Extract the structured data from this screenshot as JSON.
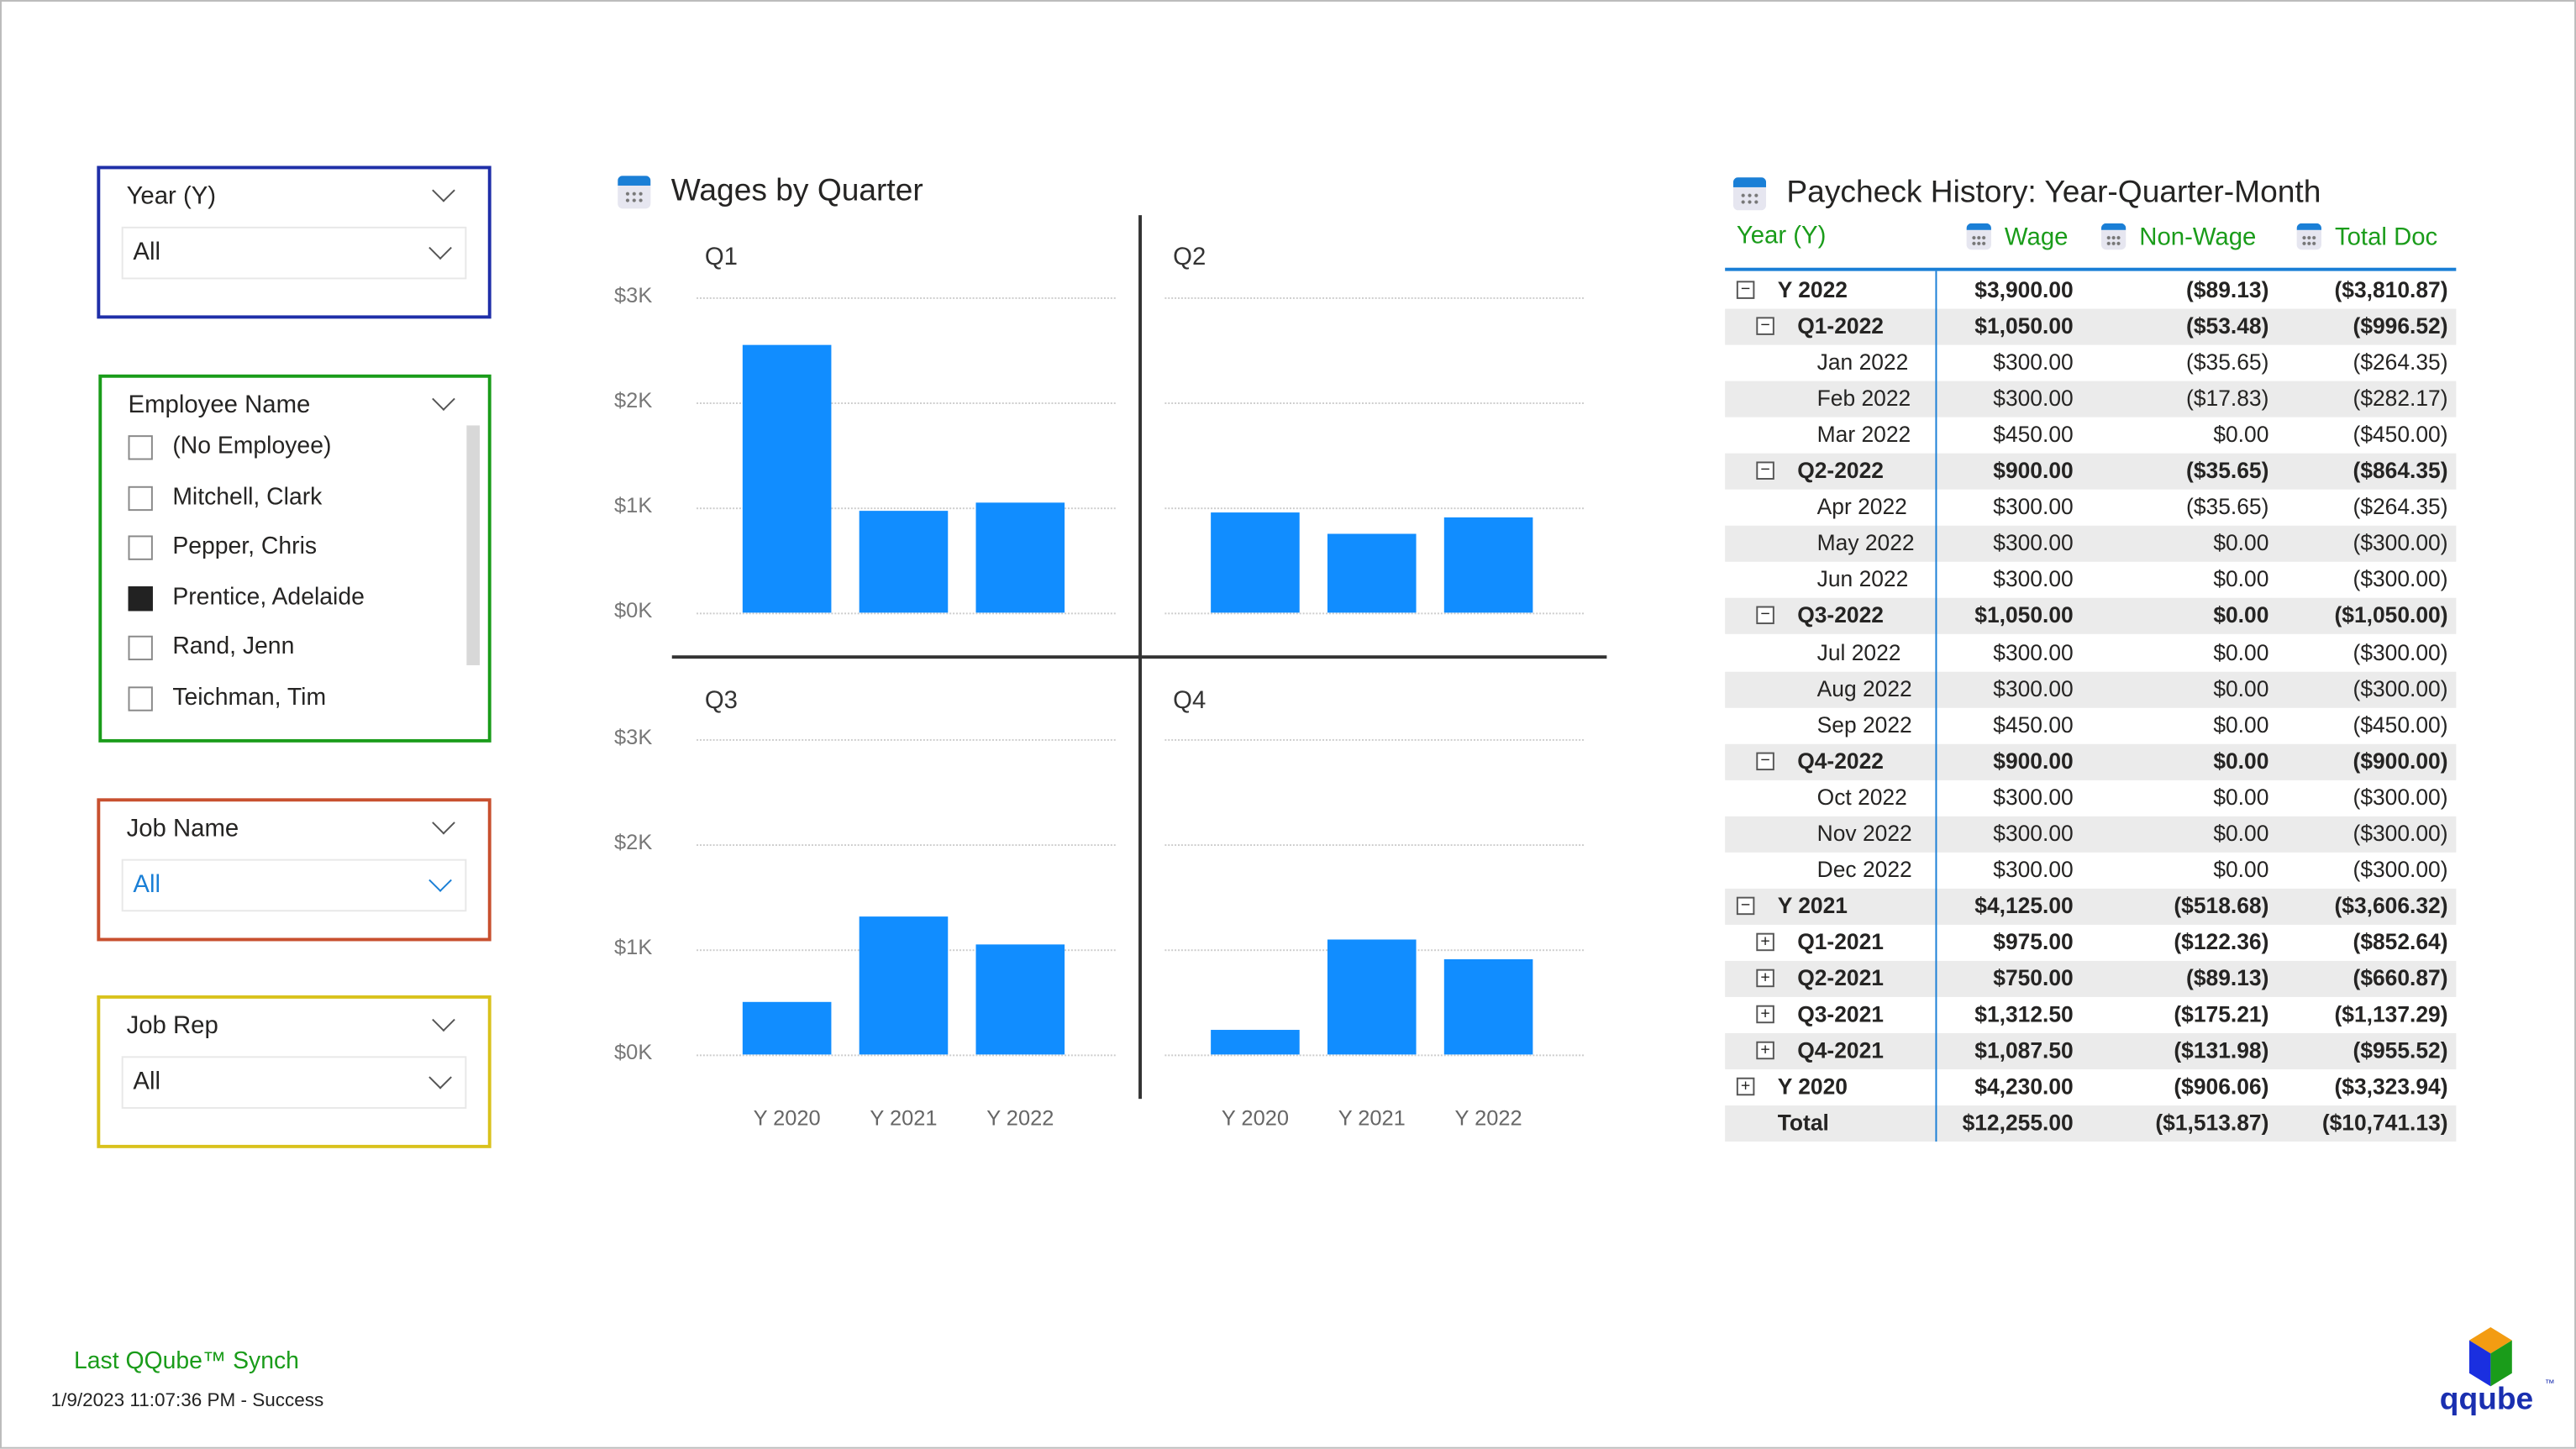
{
  "slicers": {
    "year": {
      "title": "Year (Y)",
      "value": "All",
      "color": "#1f2fa8"
    },
    "employee": {
      "title": "Employee Name",
      "color": "#1a9c1a",
      "items": [
        {
          "label": "(No Employee)",
          "checked": false
        },
        {
          "label": "Mitchell, Clark",
          "checked": false
        },
        {
          "label": "Pepper, Chris",
          "checked": false
        },
        {
          "label": "Prentice, Adelaide",
          "checked": true
        },
        {
          "label": "Rand, Jenn",
          "checked": false
        },
        {
          "label": "Teichman, Tim",
          "checked": false
        }
      ]
    },
    "job_name": {
      "title": "Job Name",
      "value": "All",
      "color": "#c8502f"
    },
    "job_rep": {
      "title": "Job Rep",
      "value": "All",
      "color": "#d9c21c"
    }
  },
  "wages_chart": {
    "title": "Wages by Quarter",
    "icon": "calendar-table-icon"
  },
  "chart_data": {
    "type": "bar",
    "title": "Wages by Quarter",
    "panels": [
      "Q1",
      "Q2",
      "Q3",
      "Q4"
    ],
    "categories": [
      "Y 2020",
      "Y 2021",
      "Y 2022"
    ],
    "yticks": [
      "$0K",
      "$1K",
      "$2K",
      "$3K"
    ],
    "ylim": [
      0,
      3000
    ],
    "series": [
      {
        "name": "Q1",
        "values": [
          2550,
          975,
          1050
        ]
      },
      {
        "name": "Q2",
        "values": [
          950,
          750,
          900
        ]
      },
      {
        "name": "Q3",
        "values": [
          500,
          1312.5,
          1050
        ]
      },
      {
        "name": "Q4",
        "values": [
          230,
          1087.5,
          900
        ]
      }
    ],
    "bar_color": "#118dff"
  },
  "matrix": {
    "title": "Paycheck History: Year-Quarter-Month",
    "headers": {
      "row": "Year (Y)",
      "wage": "Wage",
      "nonwage": "Non-Wage",
      "total": "Total Doc"
    },
    "header_color": "#1a9c1a",
    "rows": [
      {
        "level": 0,
        "toggle": "−",
        "label": "Y 2022",
        "wage": "$3,900.00",
        "nonwage": "($89.13)",
        "total": "($3,810.87)"
      },
      {
        "level": 1,
        "toggle": "−",
        "label": "Q1-2022",
        "wage": "$1,050.00",
        "nonwage": "($53.48)",
        "total": "($996.52)"
      },
      {
        "level": 2,
        "label": "Jan 2022",
        "wage": "$300.00",
        "nonwage": "($35.65)",
        "total": "($264.35)"
      },
      {
        "level": 2,
        "label": "Feb 2022",
        "wage": "$300.00",
        "nonwage": "($17.83)",
        "total": "($282.17)"
      },
      {
        "level": 2,
        "label": "Mar 2022",
        "wage": "$450.00",
        "nonwage": "$0.00",
        "total": "($450.00)"
      },
      {
        "level": 1,
        "toggle": "−",
        "label": "Q2-2022",
        "wage": "$900.00",
        "nonwage": "($35.65)",
        "total": "($864.35)"
      },
      {
        "level": 2,
        "label": "Apr 2022",
        "wage": "$300.00",
        "nonwage": "($35.65)",
        "total": "($264.35)"
      },
      {
        "level": 2,
        "label": "May 2022",
        "wage": "$300.00",
        "nonwage": "$0.00",
        "total": "($300.00)"
      },
      {
        "level": 2,
        "label": "Jun 2022",
        "wage": "$300.00",
        "nonwage": "$0.00",
        "total": "($300.00)"
      },
      {
        "level": 1,
        "toggle": "−",
        "label": "Q3-2022",
        "wage": "$1,050.00",
        "nonwage": "$0.00",
        "total": "($1,050.00)"
      },
      {
        "level": 2,
        "label": "Jul 2022",
        "wage": "$300.00",
        "nonwage": "$0.00",
        "total": "($300.00)"
      },
      {
        "level": 2,
        "label": "Aug 2022",
        "wage": "$300.00",
        "nonwage": "$0.00",
        "total": "($300.00)"
      },
      {
        "level": 2,
        "label": "Sep 2022",
        "wage": "$450.00",
        "nonwage": "$0.00",
        "total": "($450.00)"
      },
      {
        "level": 1,
        "toggle": "−",
        "label": "Q4-2022",
        "wage": "$900.00",
        "nonwage": "$0.00",
        "total": "($900.00)"
      },
      {
        "level": 2,
        "label": "Oct 2022",
        "wage": "$300.00",
        "nonwage": "$0.00",
        "total": "($300.00)"
      },
      {
        "level": 2,
        "label": "Nov 2022",
        "wage": "$300.00",
        "nonwage": "$0.00",
        "total": "($300.00)"
      },
      {
        "level": 2,
        "label": "Dec 2022",
        "wage": "$300.00",
        "nonwage": "$0.00",
        "total": "($300.00)"
      },
      {
        "level": 0,
        "toggle": "−",
        "label": "Y 2021",
        "wage": "$4,125.00",
        "nonwage": "($518.68)",
        "total": "($3,606.32)"
      },
      {
        "level": 1,
        "toggle": "+",
        "label": "Q1-2021",
        "wage": "$975.00",
        "nonwage": "($122.36)",
        "total": "($852.64)"
      },
      {
        "level": 1,
        "toggle": "+",
        "label": "Q2-2021",
        "wage": "$750.00",
        "nonwage": "($89.13)",
        "total": "($660.87)"
      },
      {
        "level": 1,
        "toggle": "+",
        "label": "Q3-2021",
        "wage": "$1,312.50",
        "nonwage": "($175.21)",
        "total": "($1,137.29)"
      },
      {
        "level": 1,
        "toggle": "+",
        "label": "Q4-2021",
        "wage": "$1,087.50",
        "nonwage": "($131.98)",
        "total": "($955.52)"
      },
      {
        "level": 0,
        "toggle": "+",
        "label": "Y 2020",
        "wage": "$4,230.00",
        "nonwage": "($906.06)",
        "total": "($3,323.94)"
      },
      {
        "level": -1,
        "label": "Total",
        "wage": "$12,255.00",
        "nonwage": "($1,513.87)",
        "total": "($10,741.13)"
      }
    ]
  },
  "footer": {
    "sync_title": "Last QQube™ Synch",
    "sync_status": "1/9/2023 11:07:36 PM - Success",
    "logo_text": "qqube",
    "logo_tm": "™"
  }
}
